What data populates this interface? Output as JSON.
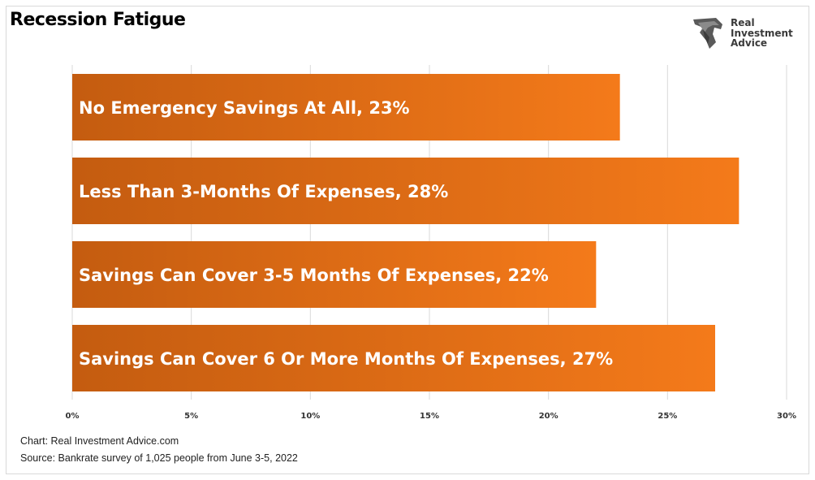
{
  "title": "Recession Fatigue",
  "logo": {
    "icon": "eagle-head-icon",
    "lines": [
      "Real",
      "Investment",
      "Advice"
    ]
  },
  "colors": {
    "bar_start": "#c45c10",
    "bar_end": "#f47a1a",
    "grid": "#d9d9d9",
    "bar_label": "#ffffff"
  },
  "chart_data": {
    "type": "bar",
    "orientation": "horizontal",
    "categories": [
      "No Emergency Savings At All, 23%",
      "Less Than 3-Months Of Expenses, 28%",
      "Savings Can Cover 3-5 Months Of Expenses, 22%",
      "Savings Can Cover 6 Or More Months Of Expenses, 27%"
    ],
    "values": [
      23,
      28,
      22,
      27
    ],
    "xlim": [
      0,
      30
    ],
    "xticks": [
      0,
      5,
      10,
      15,
      20,
      25,
      30
    ],
    "xtick_labels": [
      "0%",
      "5%",
      "10%",
      "15%",
      "20%",
      "25%",
      "30%"
    ],
    "grid": true,
    "legend": "none"
  },
  "footer": {
    "credit": "Chart: Real Investment Advice.com",
    "source": "Source: Bankrate survey of 1,025 people from June 3-5, 2022"
  }
}
